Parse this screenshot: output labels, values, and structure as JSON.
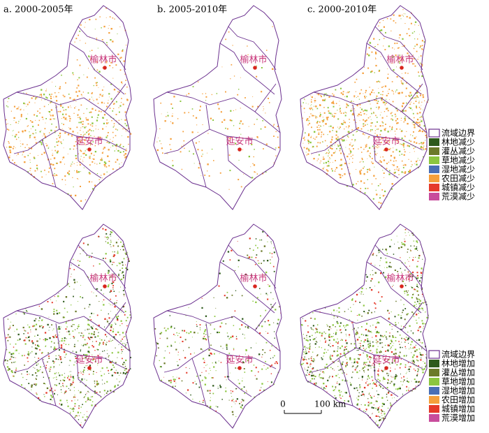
{
  "panel_titles": [
    "a. 2000-2005年",
    "b. 2005-2010年",
    "c. 2000-2010年"
  ],
  "cities": [
    "榆林市",
    "延安市"
  ],
  "legend_decrease": [
    {
      "label": "流域边界",
      "color": "#6a2f8e"
    },
    {
      "label": "林地减少",
      "color": "#2e5a1c"
    },
    {
      "label": "灌丛减少",
      "color": "#6b7a2a"
    },
    {
      "label": "草地减少",
      "color": "#8cc63f"
    },
    {
      "label": "湿地减少",
      "color": "#4a6fb5"
    },
    {
      "label": "农田减少",
      "color": "#f5a03c"
    },
    {
      "label": "城镇减少",
      "color": "#e53a2a"
    },
    {
      "label": "荒漠减少",
      "color": "#c84c9c"
    }
  ],
  "legend_increase": [
    {
      "label": "流域边界",
      "color": "#6a2f8e"
    },
    {
      "label": "林地增加",
      "color": "#2e5a1c"
    },
    {
      "label": "灌丛增加",
      "color": "#6b7a2a"
    },
    {
      "label": "草地增加",
      "color": "#8cc63f"
    },
    {
      "label": "湿地增加",
      "color": "#4a6fb5"
    },
    {
      "label": "农田增加",
      "color": "#f5a03c"
    },
    {
      "label": "城镇增加",
      "color": "#e53a2a"
    },
    {
      "label": "荒漠增加",
      "color": "#c84c9c"
    }
  ],
  "scale_bar": {
    "start": "0",
    "end": "100 km"
  }
}
